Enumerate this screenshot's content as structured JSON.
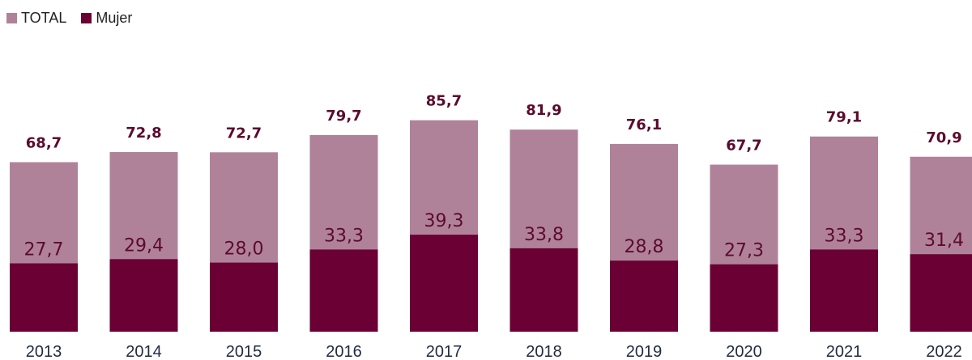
{
  "chart_data": {
    "type": "bar",
    "categories": [
      "2013",
      "2014",
      "2015",
      "2016",
      "2017",
      "2018",
      "2019",
      "2020",
      "2021",
      "2022"
    ],
    "series": [
      {
        "name": "TOTAL",
        "values": [
          68.7,
          72.8,
          72.7,
          79.7,
          85.7,
          81.9,
          76.1,
          67.7,
          79.1,
          70.9
        ],
        "labels": [
          "68,7",
          "72,8",
          "72,7",
          "79,7",
          "85,7",
          "81,9",
          "76,1",
          "67,7",
          "79,1",
          "70,9"
        ]
      },
      {
        "name": "Mujer",
        "values": [
          27.7,
          29.4,
          28.0,
          33.3,
          39.3,
          33.8,
          28.8,
          27.3,
          33.3,
          31.4
        ],
        "labels": [
          "27,7",
          "29,4",
          "28,0",
          "33,3",
          "39,3",
          "33,8",
          "28,8",
          "27,3",
          "33,3",
          "31,4"
        ]
      }
    ],
    "colors": {
      "TOTAL": "#b08299",
      "Mujer": "#6a0033"
    },
    "overlap": true,
    "legend_position": "top-left",
    "grid": false,
    "ylim": [
      0,
      95
    ]
  }
}
